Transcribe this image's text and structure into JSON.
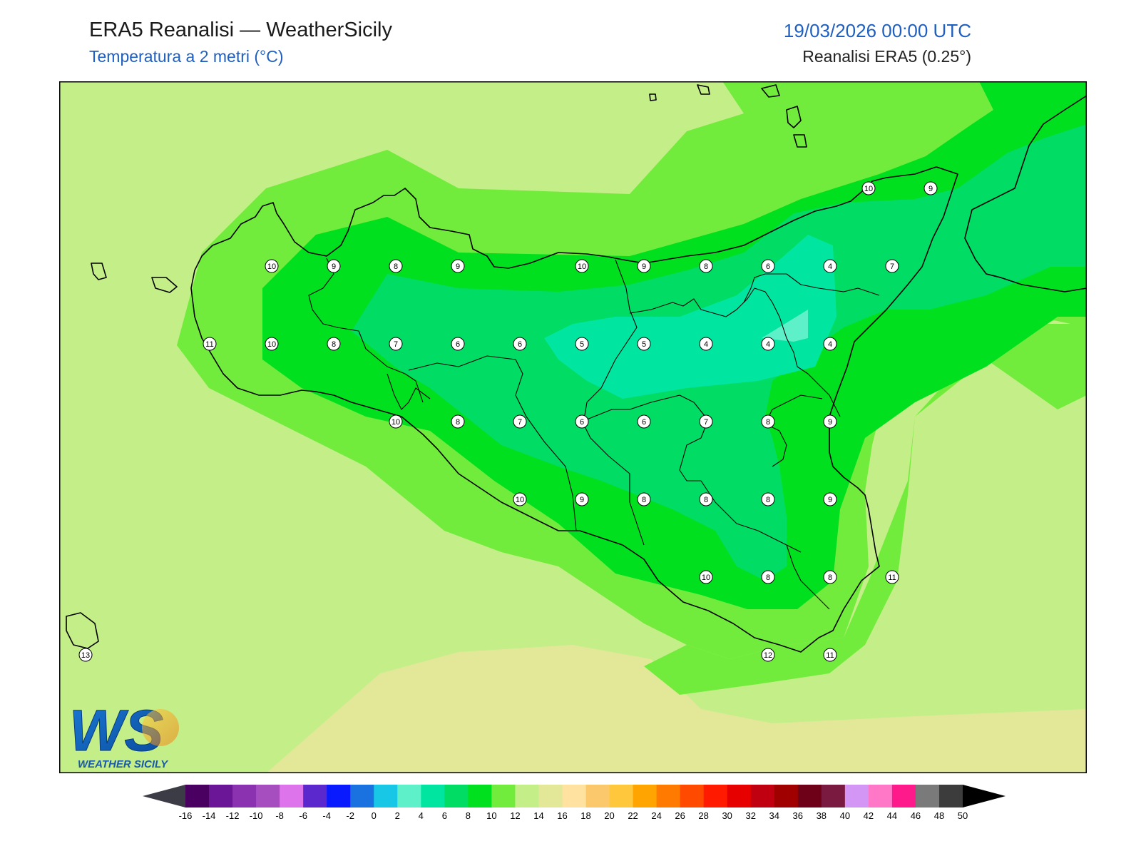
{
  "header": {
    "title": "ERA5 Reanalisi — WeatherSicily",
    "subtitle": "Temperatura a 2 metri (°C)",
    "datetime": "19/03/2026 00:00 UTC",
    "source": "Reanalisi ERA5 (0.25°)"
  },
  "logo": {
    "letters": "WS",
    "name": "WEATHER SICILY"
  },
  "colors": {
    "t10": "#00e01e",
    "t12": "#72ec3c",
    "t14": "#c4ee88",
    "t16": "#e2e898",
    "t8": "#00dc64",
    "t6": "#00e6a0",
    "t4": "#5ef0c8",
    "coast": "#000000"
  },
  "values": [
    {
      "v": "10"
    },
    {
      "v": "9"
    },
    {
      "v": "10"
    },
    {
      "v": "9"
    },
    {
      "v": "8"
    },
    {
      "v": "9"
    },
    {
      "v": "10"
    },
    {
      "v": "9"
    },
    {
      "v": "8"
    },
    {
      "v": "6"
    },
    {
      "v": "4"
    },
    {
      "v": "7"
    },
    {
      "v": "11"
    },
    {
      "v": "10"
    },
    {
      "v": "8"
    },
    {
      "v": "7"
    },
    {
      "v": "6"
    },
    {
      "v": "6"
    },
    {
      "v": "5"
    },
    {
      "v": "5"
    },
    {
      "v": "4"
    },
    {
      "v": "4"
    },
    {
      "v": "4"
    },
    {
      "v": "10"
    },
    {
      "v": "8"
    },
    {
      "v": "7"
    },
    {
      "v": "6"
    },
    {
      "v": "6"
    },
    {
      "v": "7"
    },
    {
      "v": "8"
    },
    {
      "v": "9"
    },
    {
      "v": "10"
    },
    {
      "v": "9"
    },
    {
      "v": "8"
    },
    {
      "v": "8"
    },
    {
      "v": "8"
    },
    {
      "v": "9"
    },
    {
      "v": "10"
    },
    {
      "v": "8"
    },
    {
      "v": "8"
    },
    {
      "v": "11"
    },
    {
      "v": "13"
    },
    {
      "v": "12"
    },
    {
      "v": "11"
    }
  ],
  "colorbar": {
    "colors": [
      "#4a0060",
      "#6a1696",
      "#8a32b0",
      "#a64ec0",
      "#de74ec",
      "#5a28cc",
      "#0a1aff",
      "#1a72e0",
      "#18c6e6",
      "#5ef0c8",
      "#00e6a0",
      "#00dc64",
      "#00e01e",
      "#72ec3c",
      "#c4ee88",
      "#e2e898",
      "#ffe2a0",
      "#fcc86c",
      "#ffc83c",
      "#ffa400",
      "#ff7a00",
      "#ff4a00",
      "#ff1a00",
      "#e60000",
      "#c00010",
      "#a00000",
      "#6e0018",
      "#7a1a40",
      "#d496f4",
      "#ff78c8",
      "#ff1a8c",
      "#7a7a7a",
      "#3c3c3c"
    ],
    "under_color": "#3c3c46",
    "over_color": "#000000",
    "labels": [
      "-16",
      "-14",
      "-12",
      "-10",
      "-8",
      "-6",
      "-4",
      "-2",
      "0",
      "2",
      "4",
      "6",
      "8",
      "10",
      "12",
      "14",
      "16",
      "18",
      "20",
      "22",
      "24",
      "26",
      "28",
      "30",
      "32",
      "34",
      "36",
      "38",
      "40",
      "42",
      "44",
      "46",
      "48",
      "50"
    ]
  }
}
